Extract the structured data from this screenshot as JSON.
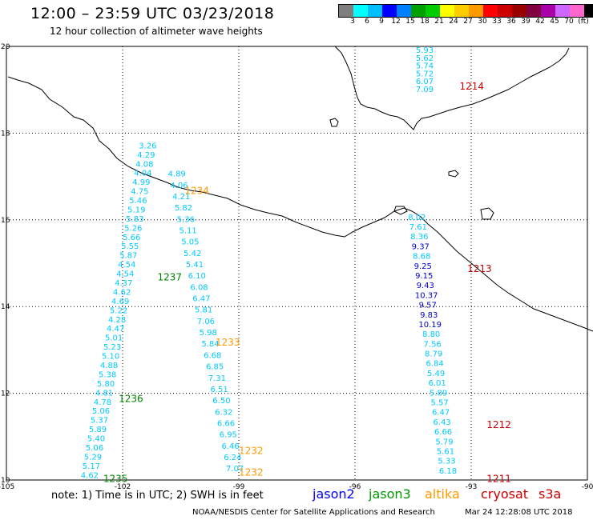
{
  "title": "12:00 – 23:59 UTC 03/23/2018",
  "subtitle": "12 hour collection of altimeter wave heights",
  "legend": {
    "colors": [
      "#7f7f7f",
      "#00ffff",
      "#00bfff",
      "#0000ff",
      "#0080ff",
      "#009f00",
      "#00cc00",
      "#ffff00",
      "#ffcc00",
      "#ff9900",
      "#ff0000",
      "#cc0000",
      "#990000",
      "#800040",
      "#aa00aa",
      "#cc66ff",
      "#ff66cc",
      "#000000"
    ],
    "labels": [
      "3",
      "6",
      "9",
      "12",
      "15",
      "18",
      "21",
      "24",
      "27",
      "30",
      "33",
      "36",
      "39",
      "42",
      "45",
      "70",
      "(ft)"
    ]
  },
  "map_extent": {
    "lon": [
      -105,
      -90
    ],
    "lat": [
      10,
      20
    ]
  },
  "lon_ticks": [
    "-105",
    "-102",
    "-99",
    "-96",
    "-93",
    "-90"
  ],
  "lat_ticks": [
    "20",
    "18",
    "16",
    "14",
    "12",
    "10"
  ],
  "passes": [
    {
      "id": "cyan-a",
      "color": "#00c8ff",
      "start": [
        -101.35,
        17.65
      ],
      "end": [
        -102.85,
        10.05
      ],
      "values": [
        "3.26",
        "4.29",
        "4.08",
        "4.04",
        "4.99",
        "4.75",
        "5.46",
        "5.19",
        "5.83",
        "5.26",
        "5.66",
        "5.55",
        "5.87",
        "4.54",
        "4.54",
        "4.37",
        "4.62",
        "4.69",
        "5.22",
        "4.28",
        "4.47",
        "5.01",
        "5.23",
        "5.10",
        "4.88",
        "5.38",
        "5.80",
        "4.81",
        "4.78",
        "5.06",
        "5.37",
        "5.89",
        "5.40",
        "5.06",
        "5.29",
        "5.17",
        "4.62"
      ]
    },
    {
      "id": "cyan-b",
      "color": "#00c8ff",
      "start": [
        -100.6,
        17.0
      ],
      "end": [
        -99.1,
        10.2
      ],
      "values": [
        "4.89",
        "4.06",
        "4.21",
        "5.82",
        "5.36",
        "5.11",
        "5.05",
        "5.42",
        "5.41",
        "6.10",
        "6.08",
        "6.47",
        "5.81",
        "7.06",
        "5.98",
        "5.84",
        "6.68",
        "6.85",
        "7.31",
        "6.51",
        "6.50",
        "6.32",
        "6.66",
        "6.95",
        "6.46",
        "6.24",
        "7.07"
      ]
    },
    {
      "id": "cyan-c",
      "color": "#00c8ff",
      "start": [
        -94.2,
        19.85
      ],
      "end": [
        -94.2,
        18.95
      ],
      "values": [
        "5.93",
        "5.62",
        "5.74",
        "5.72",
        "6.07",
        "7.09"
      ]
    },
    {
      "id": "mixed-d",
      "color": "#0000cc",
      "start": [
        -94.4,
        16.0
      ],
      "end": [
        -93.6,
        10.15
      ],
      "values": [
        "8.02",
        "7.61",
        "8.36",
        "9.37",
        "8.68",
        "9.25",
        "9.15",
        "9.43",
        "10.37",
        "9.57",
        "9.83",
        "10.19",
        "8.80",
        "7.56",
        "8.79",
        "6.84",
        "5.49",
        "6.01",
        "5.89",
        "5.57",
        "6.47",
        "6.43",
        "6.66",
        "5.79",
        "5.61",
        "5.33",
        "6.18"
      ],
      "colors": [
        "#00c8ff",
        "#00c8ff",
        "#00c8ff",
        "#0000cc",
        "#00c8ff",
        "#0000cc",
        "#0000cc",
        "#0000cc",
        "#0000cc",
        "#0000cc",
        "#0000cc",
        "#0000cc",
        "#00c8ff",
        "#00c8ff",
        "#00c8ff",
        "#00c8ff",
        "#00c8ff",
        "#00c8ff",
        "#00c8ff",
        "#00c8ff",
        "#00c8ff",
        "#00c8ff",
        "#00c8ff",
        "#00c8ff",
        "#00c8ff",
        "#00c8ff",
        "#00c8ff"
      ]
    }
  ],
  "time_labels": [
    {
      "text": "1214",
      "color": "#cc0000",
      "lon": -93.3,
      "lat": 19.0
    },
    {
      "text": "1234",
      "color": "#ff9900",
      "lon": -100.4,
      "lat": 16.6
    },
    {
      "text": "1213",
      "color": "#cc0000",
      "lon": -93.1,
      "lat": 14.8
    },
    {
      "text": "1237",
      "color": "#008000",
      "lon": -101.1,
      "lat": 14.6
    },
    {
      "text": "1233",
      "color": "#ff9900",
      "lon": -99.6,
      "lat": 13.1
    },
    {
      "text": "1236",
      "color": "#008000",
      "lon": -102.1,
      "lat": 11.8
    },
    {
      "text": "1212",
      "color": "#cc0000",
      "lon": -92.6,
      "lat": 11.2
    },
    {
      "text": "1232",
      "color": "#ff9900",
      "lon": -99.0,
      "lat": 10.6
    },
    {
      "text": "1232",
      "color": "#ff9900",
      "lon": -99.0,
      "lat": 10.1
    },
    {
      "text": "1211",
      "color": "#cc0000",
      "lon": -92.6,
      "lat": 9.95
    },
    {
      "text": "1235",
      "color": "#008000",
      "lon": -102.5,
      "lat": 9.95
    }
  ],
  "note": "note:  1) Time is in UTC;  2) SWH is in feet",
  "satellites": [
    {
      "name": "jason2",
      "color": "#0000ff"
    },
    {
      "name": "jason3",
      "color": "#009900"
    },
    {
      "name": "altika",
      "color": "#ff9900"
    },
    {
      "name": "cryosat",
      "color": "#cc0000"
    },
    {
      "name": "s3a",
      "color": "#cc0000"
    }
  ],
  "credit": "NOAA/NESDIS Center for Satellite Applications and Research",
  "timestamp": "Mar 24 12:28:08 UTC 2018"
}
